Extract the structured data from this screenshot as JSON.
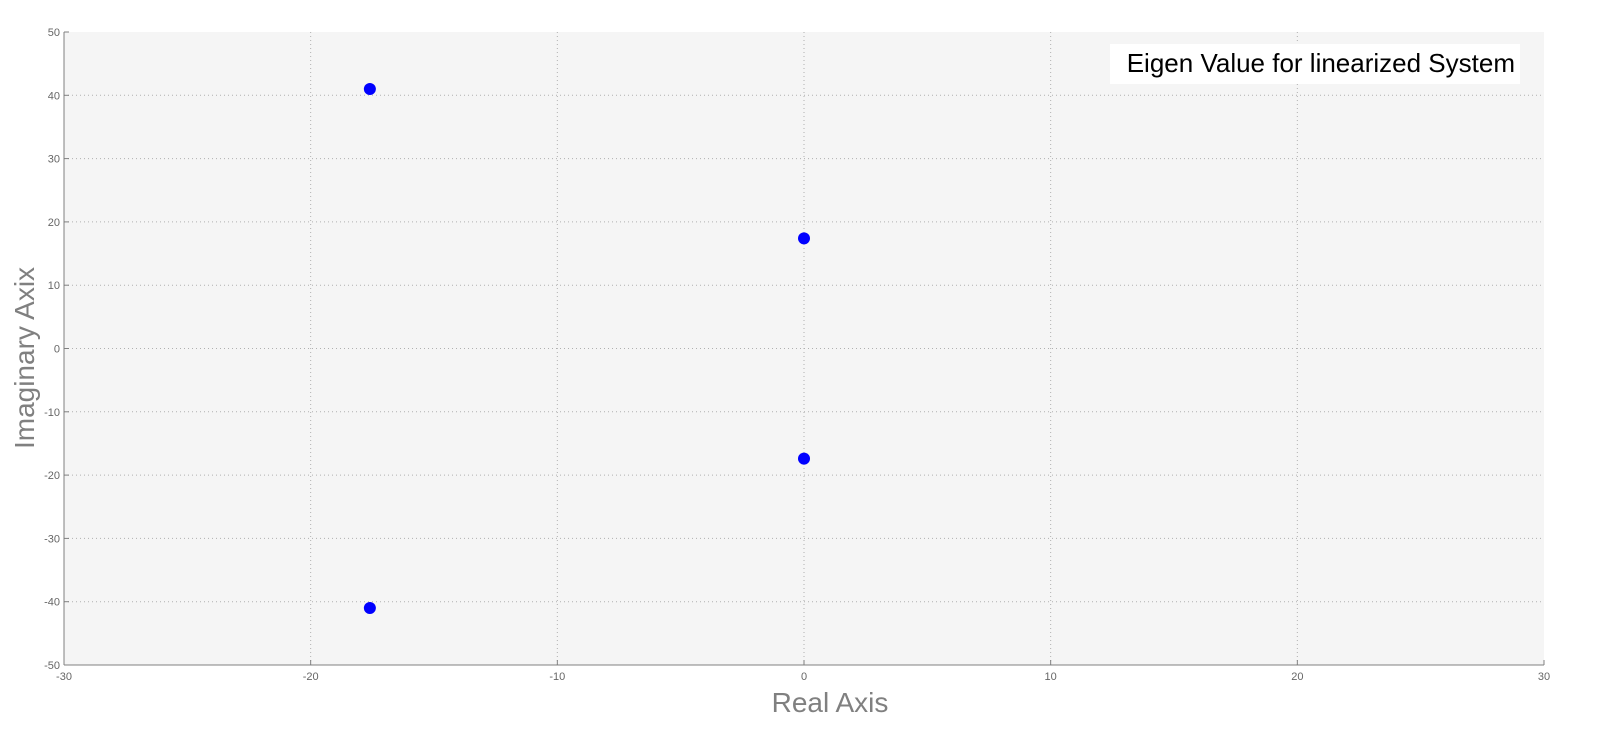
{
  "chart_data": {
    "type": "scatter",
    "title": "",
    "annotation": "Eigen Value for linearized System",
    "xlabel": "Real Axis",
    "ylabel": "Imaginary Axix",
    "xlim": [
      -30,
      30
    ],
    "ylim": [
      -50,
      50
    ],
    "xticks": [
      -30,
      -20,
      -10,
      0,
      10,
      20,
      30
    ],
    "yticks": [
      -50,
      -40,
      -30,
      -20,
      -10,
      0,
      10,
      20,
      30,
      40,
      50
    ],
    "grid": true,
    "grid_style": "dotted",
    "series": [
      {
        "points": [
          {
            "x": -17.6,
            "y": 41.0
          },
          {
            "x": -17.6,
            "y": -41.0
          },
          {
            "x": 0.0,
            "y": 17.4
          },
          {
            "x": 0.0,
            "y": -17.4
          }
        ],
        "marker": "circle",
        "color": "#0000ff"
      }
    ],
    "colors": {
      "plot_background": "#f5f5f5",
      "axis": "#808080",
      "grid": "#b0b0b0",
      "tick_text": "#666666",
      "label_text": "#808080",
      "annotation_background": "#ffffff"
    }
  }
}
